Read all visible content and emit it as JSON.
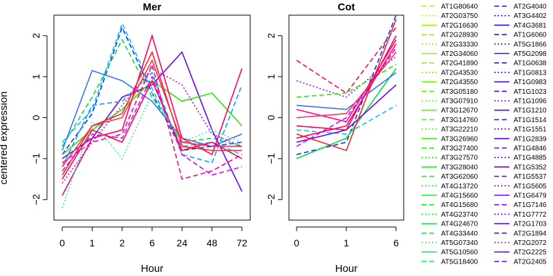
{
  "chart_data": [
    {
      "type": "line",
      "title": "Mer",
      "xlabel": "Hour",
      "ylabel": "centered expression",
      "categories": [
        "0",
        "1",
        "2",
        "6",
        "24",
        "48",
        "72"
      ],
      "ylim": [
        -2.5,
        2.5
      ],
      "yticks": [
        -2,
        -1,
        0,
        1,
        2
      ],
      "grid": false,
      "series": [
        {
          "color": "#00c8ff",
          "dash": "dashed",
          "values": [
            -0.6,
            0.2,
            2.3,
            0.7,
            -0.7,
            -0.6,
            -0.9
          ]
        },
        {
          "color": "#0033ff",
          "dash": "dashed",
          "values": [
            -0.9,
            0.1,
            2.2,
            0.6,
            -0.8,
            -0.7,
            -0.6
          ]
        },
        {
          "color": "#00e040",
          "dash": "dashed",
          "values": [
            -0.7,
            0.5,
            1.9,
            0.5,
            -0.6,
            -0.5,
            -0.7
          ]
        },
        {
          "color": "#3a6cff",
          "dash": "solid",
          "values": [
            -0.8,
            1.15,
            0.9,
            0.4,
            -0.5,
            -0.7,
            -0.4
          ]
        },
        {
          "color": "#6a00ff",
          "dash": "solid",
          "values": [
            -1.0,
            -0.5,
            0.5,
            0.8,
            1.6,
            -0.3,
            -1.8
          ]
        },
        {
          "color": "#2ee600",
          "dash": "solid",
          "values": [
            -0.9,
            -0.3,
            0.2,
            0.9,
            0.4,
            0.6,
            -0.2
          ]
        },
        {
          "color": "#00a0ff",
          "dash": "dashed",
          "values": [
            -1.2,
            0.3,
            0.4,
            1.1,
            -0.9,
            -1.1,
            0.8
          ]
        },
        {
          "color": "#b000ff",
          "dash": "dotted",
          "values": [
            -1.6,
            -0.6,
            0.3,
            1.2,
            0.8,
            -0.4,
            -0.7
          ]
        },
        {
          "color": "#ff0060",
          "dash": "solid",
          "values": [
            -1.9,
            -0.5,
            -0.3,
            2.0,
            -0.5,
            -0.9,
            1.2
          ]
        },
        {
          "color": "#ff2020",
          "dash": "solid",
          "values": [
            -1.4,
            -0.2,
            0.1,
            1.6,
            -0.7,
            -0.8,
            -0.8
          ]
        },
        {
          "color": "#ff0090",
          "dash": "dashed",
          "values": [
            -1.1,
            -0.6,
            -0.4,
            1.3,
            -1.5,
            -1.3,
            -0.9
          ]
        },
        {
          "color": "#e000ff",
          "dash": "dashed",
          "values": [
            -1.3,
            -0.4,
            -0.5,
            1.0,
            -0.9,
            -1.4,
            -1.2
          ]
        },
        {
          "color": "#ff0050",
          "dash": "solid",
          "values": [
            -1.5,
            -0.3,
            -0.6,
            0.9,
            -0.8,
            -0.6,
            -1.0
          ]
        },
        {
          "color": "#20ff90",
          "dash": "dotted",
          "values": [
            -2.2,
            -0.1,
            -1.0,
            0.6,
            -0.6,
            -0.3,
            -0.6
          ]
        },
        {
          "color": "#ff3050",
          "dash": "solid",
          "values": [
            -1.2,
            -0.2,
            0.0,
            1.4,
            -0.6,
            -0.7,
            -0.7
          ]
        }
      ]
    },
    {
      "type": "line",
      "title": "Cot",
      "xlabel": "Hour",
      "categories": [
        "0",
        "1",
        "6"
      ],
      "ylim": [
        -2.5,
        2.5
      ],
      "yticks": [
        -2,
        -1,
        0,
        1,
        2
      ],
      "grid": false,
      "series": [
        {
          "color": "#ff0060",
          "dash": "dashed",
          "values": [
            1.4,
            0.6,
            2.2
          ]
        },
        {
          "color": "#0033ff",
          "dash": "dashed",
          "values": [
            -0.9,
            -0.6,
            2.5
          ]
        },
        {
          "color": "#00c8ff",
          "dash": "dashed",
          "values": [
            -0.3,
            -0.4,
            0.3
          ]
        },
        {
          "color": "#00e040",
          "dash": "solid",
          "values": [
            -1.0,
            -0.5,
            1.2
          ]
        },
        {
          "color": "#6a00ff",
          "dash": "solid",
          "values": [
            -0.6,
            -0.3,
            0.8
          ]
        },
        {
          "color": "#ff2020",
          "dash": "solid",
          "values": [
            -0.4,
            -0.8,
            2.4
          ]
        },
        {
          "color": "#b000ff",
          "dash": "dotted",
          "values": [
            0.9,
            0.5,
            1.5
          ]
        },
        {
          "color": "#ff0090",
          "dash": "solid",
          "values": [
            0.2,
            -0.1,
            1.9
          ]
        },
        {
          "color": "#2ee600",
          "dash": "dashed",
          "values": [
            0.5,
            0.6,
            1.3
          ]
        },
        {
          "color": "#ff0050",
          "dash": "solid",
          "values": [
            -0.2,
            -0.3,
            2.0
          ]
        },
        {
          "color": "#3a6cff",
          "dash": "solid",
          "values": [
            0.3,
            0.2,
            1.1
          ]
        },
        {
          "color": "#e000ff",
          "dash": "dashed",
          "values": [
            -0.7,
            0.0,
            1.7
          ]
        },
        {
          "color": "#ff3050",
          "dash": "solid",
          "values": [
            0.0,
            0.1,
            1.6
          ]
        },
        {
          "color": "#ff0060",
          "dash": "solid",
          "values": [
            -0.5,
            -0.2,
            1.8
          ]
        }
      ]
    }
  ],
  "legend": {
    "position": "right",
    "columns": [
      [
        {
          "label": "AT1G80640",
          "color": "#a6ff00",
          "dash": "dashed"
        },
        {
          "label": "AT2G03750",
          "color": "#a6ff00",
          "dash": "dotted"
        },
        {
          "label": "AT2G16630",
          "color": "#9cff00",
          "dash": "solid"
        },
        {
          "label": "AT2G28930",
          "color": "#93ff00",
          "dash": "dashed"
        },
        {
          "label": "AT2G33330",
          "color": "#8aff00",
          "dash": "dotted"
        },
        {
          "label": "AT2G34060",
          "color": "#80ff00",
          "dash": "solid"
        },
        {
          "label": "AT2G41890",
          "color": "#77ff00",
          "dash": "dashed"
        },
        {
          "label": "AT2G43530",
          "color": "#6dff00",
          "dash": "dotted"
        },
        {
          "label": "AT2G43550",
          "color": "#64ff00",
          "dash": "solid"
        },
        {
          "label": "AT3G05180",
          "color": "#5aff00",
          "dash": "dashed"
        },
        {
          "label": "AT3G07910",
          "color": "#51ff00",
          "dash": "dotted"
        },
        {
          "label": "AT3G12670",
          "color": "#48ff00",
          "dash": "solid"
        },
        {
          "label": "AT3G14760",
          "color": "#3eff00",
          "dash": "dashed"
        },
        {
          "label": "AT3G22210",
          "color": "#35ff00",
          "dash": "dotted"
        },
        {
          "label": "AT3G26960",
          "color": "#2bff00",
          "dash": "solid"
        },
        {
          "label": "AT3G27400",
          "color": "#22ff00",
          "dash": "dashed"
        },
        {
          "label": "AT3G27570",
          "color": "#18ff00",
          "dash": "dotted"
        },
        {
          "label": "AT3G28040",
          "color": "#0fff00",
          "dash": "solid"
        },
        {
          "label": "AT3G62060",
          "color": "#06ff00",
          "dash": "dashed"
        },
        {
          "label": "AT4G13720",
          "color": "#00ff05",
          "dash": "dotted"
        },
        {
          "label": "AT4G15660",
          "color": "#00ff0e",
          "dash": "solid"
        },
        {
          "label": "AT4G15680",
          "color": "#00ff17",
          "dash": "dashed"
        },
        {
          "label": "AT4G23740",
          "color": "#00ff21",
          "dash": "dotted"
        },
        {
          "label": "AT4G24670",
          "color": "#00ff2a",
          "dash": "solid"
        },
        {
          "label": "AT4G33440",
          "color": "#00ff34",
          "dash": "dashed"
        },
        {
          "label": "AT5G07340",
          "color": "#00ff3d",
          "dash": "dotted"
        },
        {
          "label": "AT5G10560",
          "color": "#00ff46",
          "dash": "solid"
        },
        {
          "label": "AT5G18400",
          "color": "#00ff50",
          "dash": "dashed"
        }
      ],
      [
        {
          "label": "AT2G4040",
          "color": "#2d00ff",
          "dash": "dashed"
        },
        {
          "label": "AT3G4402",
          "color": "#3000ff",
          "dash": "dotted"
        },
        {
          "label": "AT4G3681",
          "color": "#3400ff",
          "dash": "solid"
        },
        {
          "label": "AT1G6060",
          "color": "#3700ff",
          "dash": "dashed"
        },
        {
          "label": "AT5G1866",
          "color": "#3b00ff",
          "dash": "dotted"
        },
        {
          "label": "AT5G2098",
          "color": "#3e00ff",
          "dash": "solid"
        },
        {
          "label": "AT1G0638",
          "color": "#4200ff",
          "dash": "dashed"
        },
        {
          "label": "AT1G0813",
          "color": "#4500ff",
          "dash": "dotted"
        },
        {
          "label": "AT1G0983",
          "color": "#4900ff",
          "dash": "solid"
        },
        {
          "label": "AT1G1023",
          "color": "#4c00ff",
          "dash": "dashed"
        },
        {
          "label": "AT1G1096",
          "color": "#5000ff",
          "dash": "dotted"
        },
        {
          "label": "AT1G1210",
          "color": "#5300ff",
          "dash": "solid"
        },
        {
          "label": "AT1G1514",
          "color": "#5700ff",
          "dash": "dashed"
        },
        {
          "label": "AT1G1551",
          "color": "#5a00ff",
          "dash": "dotted"
        },
        {
          "label": "AT1G2839",
          "color": "#5e00ff",
          "dash": "solid"
        },
        {
          "label": "AT1G4846",
          "color": "#6100ff",
          "dash": "dashed"
        },
        {
          "label": "AT1G4885",
          "color": "#6500ff",
          "dash": "dotted"
        },
        {
          "label": "AT1G5352",
          "color": "#6800ff",
          "dash": "solid"
        },
        {
          "label": "AT1G5537",
          "color": "#6c00ff",
          "dash": "dashed"
        },
        {
          "label": "AT1G5605",
          "color": "#6f00ff",
          "dash": "dotted"
        },
        {
          "label": "AT1G6479",
          "color": "#7300ff",
          "dash": "solid"
        },
        {
          "label": "AT1G7146",
          "color": "#7600ff",
          "dash": "dashed"
        },
        {
          "label": "AT1G7772",
          "color": "#7a00ff",
          "dash": "dotted"
        },
        {
          "label": "AT2G1703",
          "color": "#7d00ff",
          "dash": "solid"
        },
        {
          "label": "AT2G1894",
          "color": "#8100ff",
          "dash": "dashed"
        },
        {
          "label": "AT2G2072",
          "color": "#8400ff",
          "dash": "dotted"
        },
        {
          "label": "AT2G2225",
          "color": "#8800ff",
          "dash": "solid"
        },
        {
          "label": "AT2G2405",
          "color": "#8b00ff",
          "dash": "dashed"
        }
      ]
    ]
  }
}
